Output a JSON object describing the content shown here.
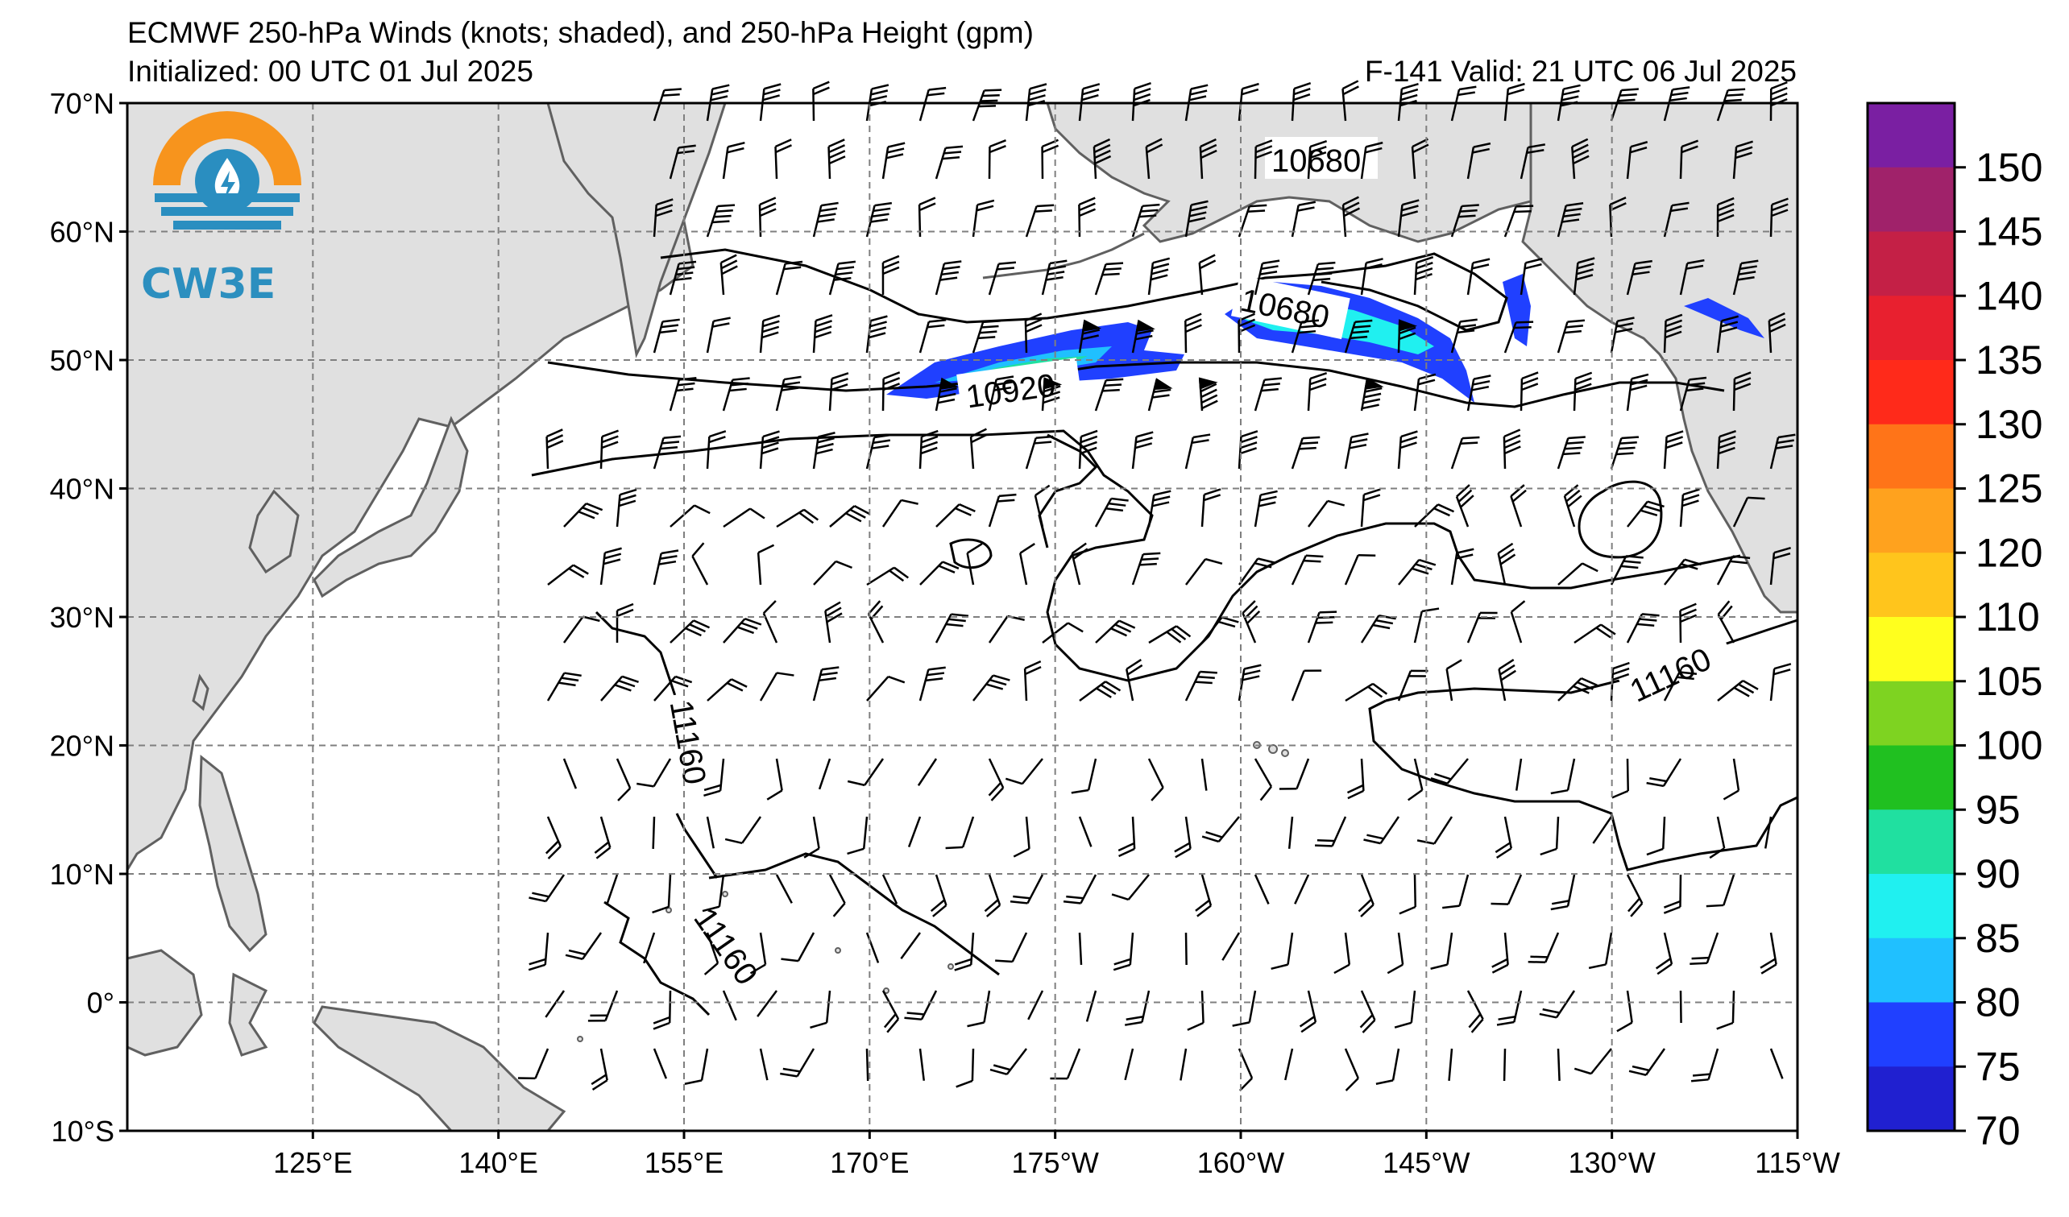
{
  "header": {
    "title_line1": "ECMWF 250-hPa Winds (knots; shaded), and 250-hPa Height (gpm)",
    "title_line2": "Initialized: 00 UTC 01 Jul 2025",
    "valid": "F-141  Valid: 21 UTC 06 Jul 2025"
  },
  "logo": {
    "text": "CW3E",
    "ring_color": "#f7941d",
    "wave_color": "#2a8ec0"
  },
  "axes": {
    "lat_labels": [
      "70°N",
      "60°N",
      "50°N",
      "40°N",
      "30°N",
      "20°N",
      "10°N",
      "0°",
      "10°S"
    ],
    "lon_labels": [
      "125°E",
      "140°E",
      "155°E",
      "170°E",
      "175°W",
      "160°W",
      "145°W",
      "130°W",
      "115°W"
    ],
    "lat_range": [
      -10,
      70
    ],
    "lon_range_label": "110°E to 115°W"
  },
  "colorbar": {
    "ticks": [
      "150",
      "145",
      "140",
      "135",
      "130",
      "125",
      "120",
      "110",
      "105",
      "100",
      "95",
      "90",
      "85",
      "80",
      "75",
      "70"
    ],
    "colors": [
      "#7a1fa2",
      "#a0226a",
      "#c42046",
      "#e8202f",
      "#ff2a1a",
      "#ff7418",
      "#ffa21e",
      "#ffc51c",
      "#ffff1e",
      "#7ed321",
      "#20c020",
      "#20e0a0",
      "#20f0f0",
      "#20c0ff",
      "#2040ff",
      "#2020d0"
    ]
  },
  "contour_labels": {
    "label_10680_north": "10680",
    "label_10680_jet": "10680",
    "label_10920": "10920",
    "label_11160_east": "11160",
    "label_11160_west": "11160",
    "label_11160_south": "11160"
  },
  "map": {
    "land_color": "#e0e0e0",
    "coast_color": "#606060",
    "jet_core_color": "#20c0ff",
    "jet_edge_color": "#2040ff"
  }
}
